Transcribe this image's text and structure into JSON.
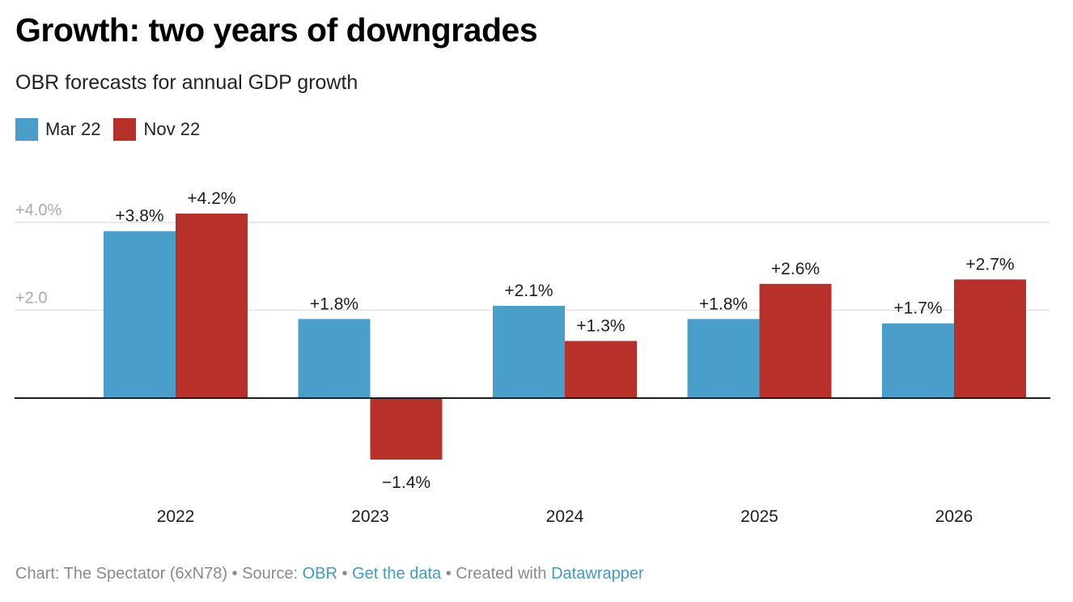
{
  "header": {
    "title": "Growth: two years of downgrades",
    "subtitle": "OBR forecasts for annual GDP growth"
  },
  "legend": [
    {
      "label": "Mar 22",
      "color": "#4a9fca"
    },
    {
      "label": "Nov 22",
      "color": "#b8302a"
    }
  ],
  "footer": {
    "chart_credit": "Chart: The Spectator (6xN78)",
    "sep1": " • ",
    "source_label": "Source: ",
    "source_link": "OBR",
    "sep2": " • ",
    "data_link": "Get the data",
    "sep3": " • ",
    "created_label": "Created with ",
    "created_link": "Datawrapper"
  },
  "chart_data": {
    "type": "bar",
    "title": "Growth: two years of downgrades",
    "subtitle": "OBR forecasts for annual GDP growth",
    "xlabel": "",
    "ylabel": "",
    "categories": [
      "2022",
      "2023",
      "2024",
      "2025",
      "2026"
    ],
    "series": [
      {
        "name": "Mar 22",
        "color": "#4a9fca",
        "values": [
          3.8,
          1.8,
          2.1,
          1.8,
          1.7
        ],
        "labels": [
          "+3.8%",
          "+1.8%",
          "+2.1%",
          "+1.8%",
          "+1.7%"
        ]
      },
      {
        "name": "Nov 22",
        "color": "#b8302a",
        "values": [
          4.2,
          -1.4,
          1.3,
          2.6,
          2.7
        ],
        "labels": [
          "+4.2%",
          "−1.4%",
          "+1.3%",
          "+2.6%",
          "+2.7%"
        ]
      }
    ],
    "yticks": [
      {
        "value": 2,
        "label": "+2.0"
      },
      {
        "value": 4,
        "label": "+4.0%"
      }
    ],
    "ylim": [
      -1.4,
      4.2
    ],
    "grid": true,
    "legend_position": "top-left",
    "gridline_color": "#e2e2e2",
    "baseline_color": "#1d1d1d",
    "tick_label_color": "#a8a8a8"
  }
}
